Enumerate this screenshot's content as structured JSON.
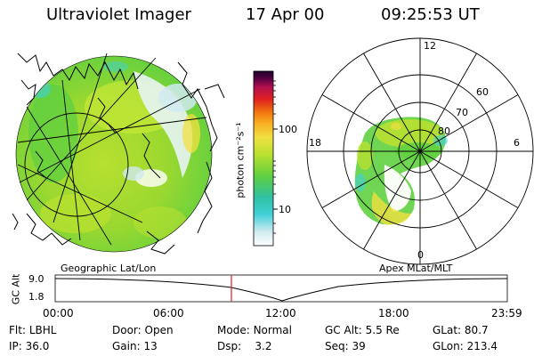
{
  "header": {
    "instrument": "Ultraviolet Imager",
    "date": "17 Apr 00",
    "time": "09:25:53 UT"
  },
  "colorbar": {
    "unit_label": "photon cm⁻²s⁻¹",
    "ticks": [
      "100",
      "10"
    ],
    "scale": "log",
    "colors": [
      "#ffffff",
      "#d0eaf0",
      "#40d0d8",
      "#30c0a0",
      "#60d040",
      "#b8e030",
      "#f0e040",
      "#f8b020",
      "#f07010",
      "#e02020",
      "#b01050",
      "#500040",
      "#200030"
    ]
  },
  "geo_panel": {
    "label": "Geographic Lat/Lon"
  },
  "polar_panel": {
    "label": "Apex MLat/MLT",
    "mlt_labels": {
      "top": "12",
      "left": "18",
      "right": "6",
      "bottom": "0"
    },
    "lat_labels": [
      "60",
      "70",
      "80"
    ]
  },
  "altitude_plot": {
    "ylabel": "GC Alt",
    "yticks": [
      "9.0",
      "1.8"
    ],
    "xticks": [
      "00:00",
      "06:00",
      "12:00",
      "18:00",
      "23:59"
    ],
    "current_time_marker": "09:25:53",
    "marker_color": "#e02020"
  },
  "footer": {
    "row1": [
      {
        "label": "Flt:",
        "value": "LBHL"
      },
      {
        "label": "Door:",
        "value": "Open"
      },
      {
        "label": "Mode:",
        "value": "Normal"
      },
      {
        "label": "GC Alt:",
        "value": "5.5 Re"
      },
      {
        "label": "GLat:",
        "value": "80.7"
      }
    ],
    "row2": [
      {
        "label": "IP:",
        "value": "36.0"
      },
      {
        "label": "Gain:",
        "value": "13"
      },
      {
        "label": "Dsp:",
        "value": "3.2"
      },
      {
        "label": "Seq:",
        "value": "39"
      },
      {
        "label": "GLon:",
        "value": "213.4"
      }
    ]
  }
}
